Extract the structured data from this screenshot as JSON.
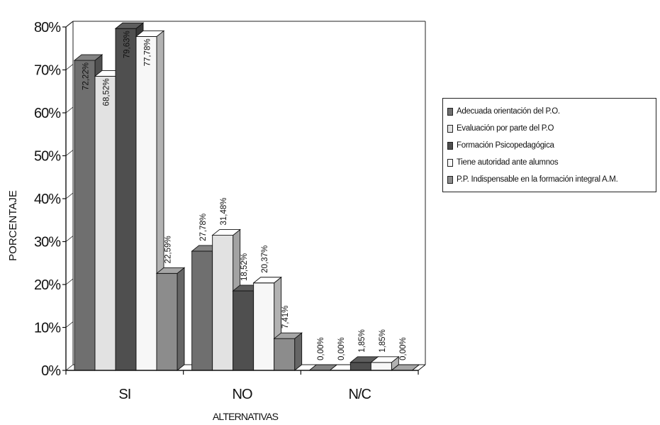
{
  "chart_data": {
    "type": "bar",
    "categories": [
      "SI",
      "NO",
      "N/C"
    ],
    "xlabel": "ALTERNATIVAS",
    "ylabel": "PORCENTAJE",
    "ylim": [
      0,
      80
    ],
    "yticks": [
      "0%",
      "10%",
      "20%",
      "30%",
      "40%",
      "50%",
      "60%",
      "70%",
      "80%"
    ],
    "legend_position": "right",
    "series": [
      {
        "name": "Adecuada orientación del P.O.",
        "values": [
          72.22,
          27.78,
          0.0
        ],
        "labels": [
          "72,22%",
          "27,78%",
          "0,00%"
        ],
        "color": "#6f6f6f"
      },
      {
        "name": "Evaluación por parte del P.O",
        "values": [
          68.52,
          31.48,
          0.0
        ],
        "labels": [
          "68,52%",
          "31,48%",
          "0,00%"
        ],
        "color": "#e2e2e2"
      },
      {
        "name": "Formación Psicopedagógica",
        "values": [
          79.63,
          18.52,
          1.85
        ],
        "labels": [
          "79,63%",
          "18,52%",
          "1,85%"
        ],
        "color": "#4f4f4f"
      },
      {
        "name": "Tiene autoridad ante alumnos",
        "values": [
          77.78,
          20.37,
          1.85
        ],
        "labels": [
          "77,78%",
          "20,37%",
          "1,85%"
        ],
        "color": "#f7f7f7"
      },
      {
        "name": "P.P. Indispensable en la formación integral A.M.",
        "values": [
          22.59,
          7.41,
          0.0
        ],
        "labels": [
          "22,59%",
          "7,41%",
          "0,00%"
        ],
        "color": "#8c8c8c"
      }
    ]
  }
}
